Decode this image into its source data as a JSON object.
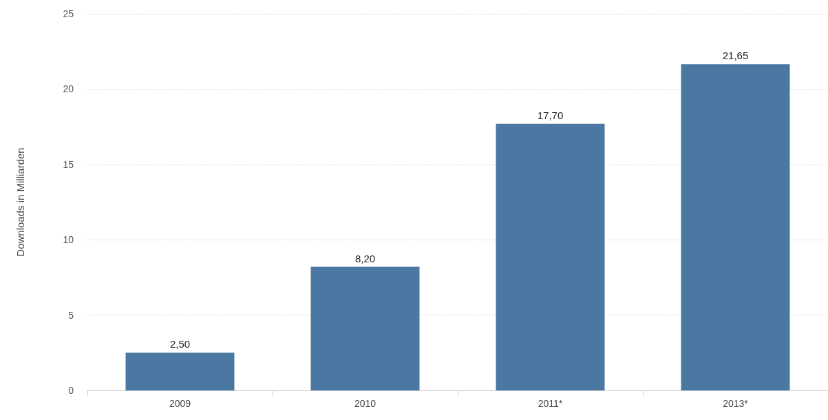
{
  "chart_data": {
    "type": "bar",
    "ylabel": "Downloads in Milliarden",
    "categories": [
      "2009",
      "2010",
      "2011*",
      "2013*"
    ],
    "values": [
      2.5,
      8.2,
      17.7,
      21.65
    ],
    "value_labels": [
      "2,50",
      "8,20",
      "17,70",
      "21,65"
    ],
    "color": "#4a78a2",
    "ylim": [
      0,
      25
    ],
    "yticks": [
      0,
      5,
      10,
      15,
      20,
      25
    ],
    "grid": "y"
  }
}
